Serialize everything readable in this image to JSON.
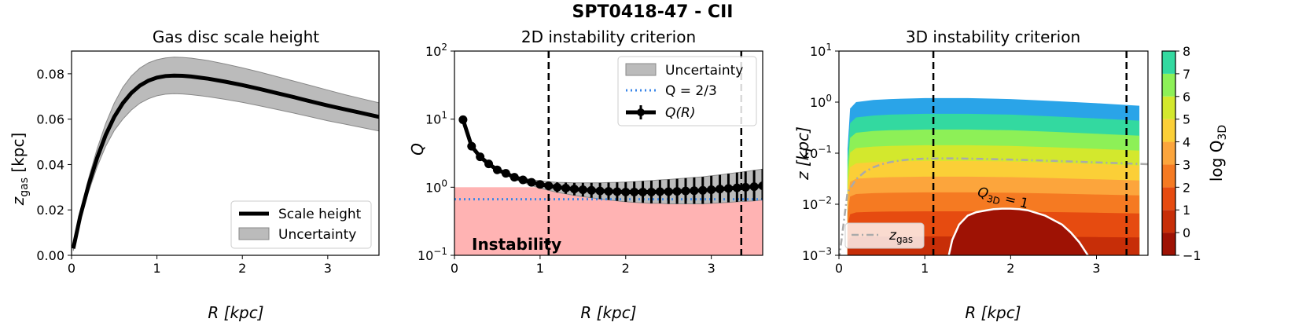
{
  "figure_title": "SPT0418-47 - CII",
  "chart_data": [
    {
      "type": "line",
      "title": "Gas disc scale height",
      "xlabel": "R [kpc]",
      "ylabel": "z_gas [kpc]",
      "ylabel_main": "z",
      "ylabel_sub": "gas",
      "ylabel_unit": " [kpc]",
      "xlim": [
        0,
        3.6
      ],
      "ylim": [
        0,
        0.09
      ],
      "xticks": [
        0,
        1,
        2,
        3
      ],
      "xtick_labels": [
        "0",
        "1",
        "2",
        "3"
      ],
      "yticks": [
        0,
        0.02,
        0.04,
        0.06,
        0.08
      ],
      "ytick_labels": [
        "0.00",
        "0.02",
        "0.04",
        "0.06",
        "0.08"
      ],
      "series": [
        {
          "name": "Scale height",
          "x": [
            0.02,
            0.1,
            0.2,
            0.3,
            0.4,
            0.5,
            0.6,
            0.7,
            0.8,
            0.9,
            1.0,
            1.1,
            1.2,
            1.3,
            1.4,
            1.6,
            1.8,
            2.0,
            2.2,
            2.4,
            2.6,
            2.8,
            3.0,
            3.2,
            3.4,
            3.6
          ],
          "y": [
            0.003,
            0.017,
            0.031,
            0.043,
            0.053,
            0.061,
            0.067,
            0.0715,
            0.0748,
            0.077,
            0.0783,
            0.079,
            0.0792,
            0.0791,
            0.0788,
            0.0778,
            0.0765,
            0.075,
            0.0733,
            0.0715,
            0.0697,
            0.0678,
            0.066,
            0.0643,
            0.0627,
            0.061
          ]
        },
        {
          "name": "Uncertainty",
          "x": [
            0.02,
            0.1,
            0.2,
            0.3,
            0.4,
            0.5,
            0.6,
            0.7,
            0.8,
            0.9,
            1.0,
            1.1,
            1.2,
            1.3,
            1.4,
            1.6,
            1.8,
            2.0,
            2.2,
            2.4,
            2.6,
            2.8,
            3.0,
            3.2,
            3.4,
            3.6
          ],
          "upper": [
            0.004,
            0.019,
            0.034,
            0.047,
            0.058,
            0.067,
            0.074,
            0.079,
            0.0825,
            0.0848,
            0.0862,
            0.087,
            0.0873,
            0.0872,
            0.0869,
            0.0858,
            0.0843,
            0.0826,
            0.0808,
            0.0788,
            0.0768,
            0.0748,
            0.0728,
            0.0708,
            0.069,
            0.0672
          ],
          "lower": [
            0.002,
            0.015,
            0.028,
            0.039,
            0.048,
            0.055,
            0.06,
            0.064,
            0.067,
            0.069,
            0.0703,
            0.071,
            0.0712,
            0.0711,
            0.0708,
            0.0699,
            0.0687,
            0.0674,
            0.0659,
            0.0643,
            0.0627,
            0.061,
            0.0593,
            0.0578,
            0.0563,
            0.0548
          ]
        }
      ],
      "legend": [
        "Scale height",
        "Uncertainty"
      ],
      "legend_loc": "lower right"
    },
    {
      "type": "line",
      "title": "2D instability criterion",
      "xlabel": "R [kpc]",
      "ylabel": "Q",
      "yscale": "log",
      "xlim": [
        0,
        3.6
      ],
      "ylim": [
        0.1,
        100
      ],
      "xticks": [
        0,
        1,
        2,
        3
      ],
      "xtick_labels": [
        "0",
        "1",
        "2",
        "3"
      ],
      "yticks": [
        0.1,
        1,
        10,
        100
      ],
      "ytick_labels": [
        "10",
        "10",
        "10",
        "10"
      ],
      "ytick_exponents": [
        "−1",
        "0",
        "1",
        "2"
      ],
      "series": [
        {
          "name": "Q(R)",
          "x": [
            0.1,
            0.2,
            0.3,
            0.4,
            0.5,
            0.6,
            0.7,
            0.8,
            0.9,
            1.0,
            1.1,
            1.2,
            1.3,
            1.4,
            1.5,
            1.6,
            1.7,
            1.8,
            1.9,
            2.0,
            2.1,
            2.2,
            2.3,
            2.4,
            2.5,
            2.6,
            2.7,
            2.8,
            2.9,
            3.0,
            3.1,
            3.2,
            3.3,
            3.4,
            3.5,
            3.6
          ],
          "y": [
            9.8,
            4.0,
            2.8,
            2.2,
            1.8,
            1.6,
            1.4,
            1.28,
            1.18,
            1.1,
            1.05,
            1.0,
            0.97,
            0.94,
            0.92,
            0.9,
            0.88,
            0.87,
            0.86,
            0.85,
            0.85,
            0.85,
            0.85,
            0.86,
            0.86,
            0.87,
            0.88,
            0.89,
            0.9,
            0.92,
            0.94,
            0.96,
            0.98,
            1.0,
            1.02,
            1.05
          ],
          "err_up": [
            0.05,
            0.05,
            0.05,
            0.06,
            0.07,
            0.08,
            0.09,
            0.1,
            0.12,
            0.14,
            0.16,
            0.18,
            0.2,
            0.22,
            0.24,
            0.26,
            0.28,
            0.3,
            0.32,
            0.34,
            0.36,
            0.38,
            0.4,
            0.42,
            0.44,
            0.46,
            0.48,
            0.5,
            0.52,
            0.55,
            0.58,
            0.62,
            0.66,
            0.7,
            0.75,
            0.8
          ],
          "err_down": [
            0.05,
            0.05,
            0.05,
            0.06,
            0.07,
            0.08,
            0.09,
            0.1,
            0.12,
            0.13,
            0.15,
            0.16,
            0.17,
            0.18,
            0.19,
            0.2,
            0.21,
            0.22,
            0.23,
            0.24,
            0.25,
            0.26,
            0.27,
            0.28,
            0.29,
            0.3,
            0.31,
            0.32,
            0.33,
            0.34,
            0.35,
            0.36,
            0.37,
            0.38,
            0.39,
            0.4
          ]
        },
        {
          "name": "Q = 2/3",
          "y_constant": 0.667
        }
      ],
      "instability_region": {
        "y_max": 1,
        "label": "Instability",
        "color": "#ffb3b3",
        "label_color": "#ff1a1a"
      },
      "vlines_x": [
        1.1,
        3.35
      ],
      "legend": [
        "Uncertainty",
        "Q = 2/3",
        "Q(R)"
      ],
      "legend_loc": "upper right"
    },
    {
      "type": "heatmap",
      "title": "3D instability criterion",
      "xlabel": "R [kpc]",
      "ylabel": "z [kpc]",
      "yscale": "log",
      "xlim": [
        0,
        3.6
      ],
      "ylim": [
        0.001,
        10
      ],
      "xticks": [
        0,
        1,
        2,
        3
      ],
      "xtick_labels": [
        "0",
        "1",
        "2",
        "3"
      ],
      "yticks": [
        0.001,
        0.01,
        0.1,
        1,
        10
      ],
      "ytick_labels": [
        "10",
        "10",
        "10",
        "10",
        "10"
      ],
      "ytick_exponents": [
        "−3",
        "−2",
        "−1",
        "0",
        "1"
      ],
      "colorbar": {
        "label": "log Q_3D",
        "label_main": "log Q",
        "label_sub": "3D",
        "levels": [
          -1,
          0,
          1,
          2,
          3,
          4,
          5,
          6,
          7,
          8
        ],
        "tick_labels": [
          "−1",
          "0",
          "1",
          "2",
          "3",
          "4",
          "5",
          "6",
          "7",
          "8"
        ],
        "colors": [
          "#9e1204",
          "#c72e08",
          "#e64b10",
          "#f57a22",
          "#fca53c",
          "#fbcf37",
          "#d3e82d",
          "#8df057",
          "#33d9a0",
          "#2aa4e8"
        ]
      },
      "contour_z_top": {
        "r": [
          0.1,
          0.13,
          0.2,
          0.4,
          0.6,
          1.0,
          1.5,
          2.0,
          2.5,
          3.0,
          3.5
        ],
        "z": [
          0.12,
          0.75,
          1.0,
          1.1,
          1.15,
          1.2,
          1.2,
          1.15,
          1.05,
          0.95,
          0.85
        ]
      },
      "series": [
        {
          "name": "z_gas",
          "x": [
            0.0,
            0.1,
            0.2,
            0.3,
            0.4,
            0.5,
            0.6,
            0.7,
            0.8,
            1.0,
            1.3,
            1.6,
            2.0,
            2.5,
            3.0,
            3.6
          ],
          "y": [
            0.0008,
            0.017,
            0.031,
            0.043,
            0.053,
            0.061,
            0.067,
            0.0715,
            0.0748,
            0.0783,
            0.0791,
            0.0778,
            0.075,
            0.0706,
            0.066,
            0.061
          ]
        }
      ],
      "q1_contour": {
        "label": "Q_3D = 1",
        "label_main": "Q",
        "label_sub": "3D",
        "label_rest": " = 1",
        "r": [
          1.28,
          1.32,
          1.4,
          1.5,
          1.6,
          1.7,
          1.8,
          1.9,
          2.0,
          2.1,
          2.2,
          2.4,
          2.6,
          2.7,
          2.8,
          2.9
        ],
        "z": [
          0.001,
          0.002,
          0.004,
          0.006,
          0.007,
          0.0075,
          0.008,
          0.0082,
          0.0082,
          0.008,
          0.0076,
          0.006,
          0.004,
          0.0028,
          0.0018,
          0.001
        ]
      },
      "vlines_x": [
        1.1,
        3.35
      ],
      "legend": [
        "z_gas"
      ],
      "legend_loc": "lower left"
    }
  ]
}
